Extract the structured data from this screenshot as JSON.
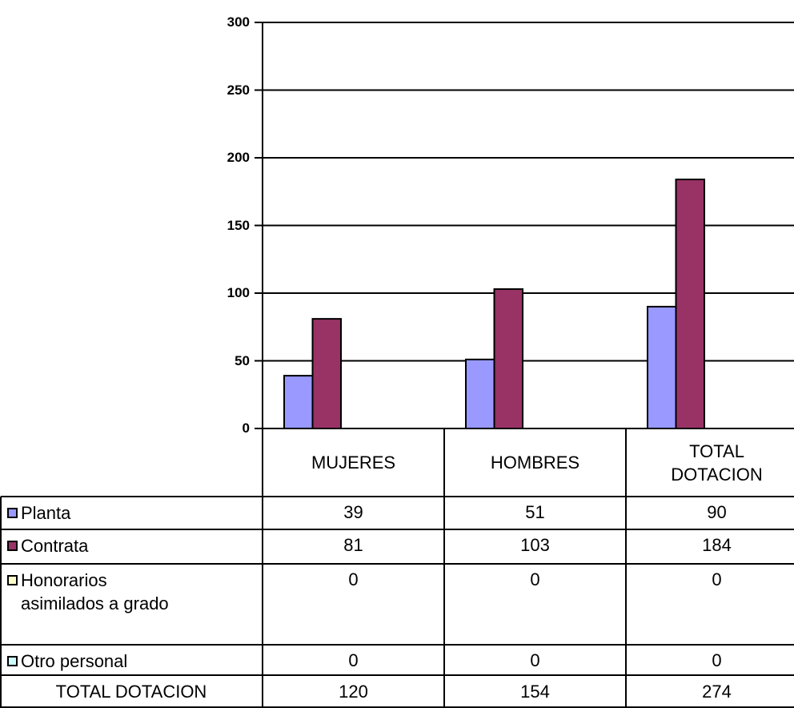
{
  "chart_data": {
    "type": "bar",
    "categories": [
      "MUJERES",
      "HOMBRES",
      "TOTAL DOTACION"
    ],
    "series": [
      {
        "name": "Planta",
        "color": "#9999ff",
        "values": [
          39,
          51,
          90
        ]
      },
      {
        "name": "Contrata",
        "color": "#993366",
        "values": [
          81,
          103,
          184
        ]
      },
      {
        "name": "Honorarios asimilados a grado",
        "color": "#ffffcc",
        "values": [
          0,
          0,
          0
        ]
      },
      {
        "name": "Otro personal",
        "color": "#ccffff",
        "values": [
          0,
          0,
          0
        ]
      }
    ],
    "totals": {
      "name": "TOTAL DOTACION",
      "values": [
        120,
        154,
        274
      ]
    },
    "ylim": [
      0,
      300
    ],
    "yticks": [
      0,
      50,
      100,
      150,
      200,
      250,
      300
    ],
    "grid": true
  }
}
